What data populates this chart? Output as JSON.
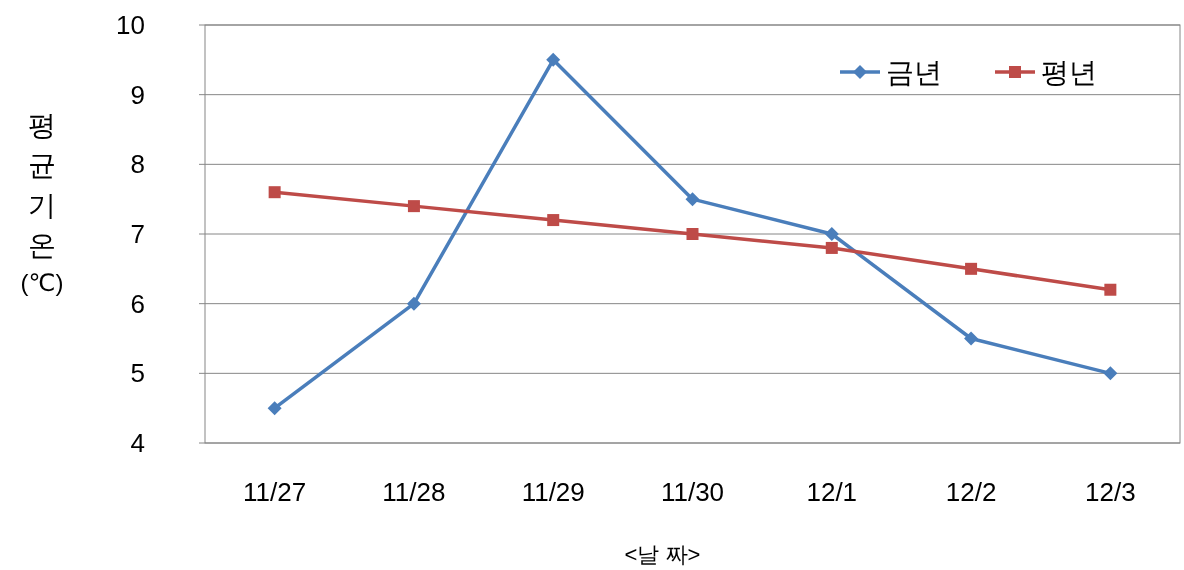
{
  "chart_data": {
    "type": "line",
    "xlabel": "<날 짜>",
    "ylabel": "평균기온 (℃)",
    "categories": [
      "11/27",
      "11/28",
      "11/29",
      "11/30",
      "12/1",
      "12/2",
      "12/3"
    ],
    "series": [
      {
        "name": "금년",
        "color": "#4a7ebb",
        "marker": "diamond",
        "values": [
          4.5,
          6,
          9.5,
          7.5,
          7,
          5.5,
          5
        ]
      },
      {
        "name": "평년",
        "color": "#be4b48",
        "marker": "square",
        "values": [
          7.6,
          7.4,
          7.2,
          7.0,
          6.8,
          6.5,
          6.2
        ]
      }
    ],
    "ylim": [
      4,
      10
    ],
    "yticks": [
      4,
      5,
      6,
      7,
      8,
      9,
      10
    ],
    "grid": "y",
    "legend": "top right",
    "line_style": "solid"
  }
}
